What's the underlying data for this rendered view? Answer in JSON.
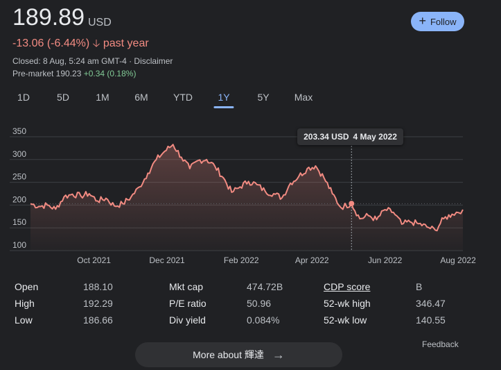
{
  "quote": {
    "price": "189.89",
    "currency": "USD",
    "change": "-13.06 (-6.44%)",
    "change_period": "past year",
    "closed_text": "Closed: 8 Aug, 5:24 am GMT-4 · Disclaimer",
    "premarket_label": "Pre-market 190.23",
    "premarket_change": "+0.34 (0.18%)"
  },
  "follow_button": {
    "label": "Follow",
    "icon": "plus-icon",
    "color": "#8ab4f8"
  },
  "ranges": [
    {
      "label": "1D",
      "active": false
    },
    {
      "label": "5D",
      "active": false
    },
    {
      "label": "1M",
      "active": false
    },
    {
      "label": "6M",
      "active": false
    },
    {
      "label": "YTD",
      "active": false
    },
    {
      "label": "1Y",
      "active": true
    },
    {
      "label": "5Y",
      "active": false
    },
    {
      "label": "Max",
      "active": false
    }
  ],
  "tooltip": {
    "value": "203.34 USD",
    "date": "4 May 2022"
  },
  "chart_data": {
    "type": "area",
    "ylim": [
      100,
      350
    ],
    "yticks": [
      "350",
      "300",
      "250",
      "200",
      "150",
      "100"
    ],
    "xticks": [
      {
        "label": "Oct 2021",
        "date": "2021-10-01"
      },
      {
        "label": "Dec 2021",
        "date": "2021-12-01"
      },
      {
        "label": "Feb 2022",
        "date": "2022-02-01"
      },
      {
        "label": "Apr 2022",
        "date": "2022-04-01"
      },
      {
        "label": "Jun 2022",
        "date": "2022-06-01"
      },
      {
        "label": "Aug 2022",
        "date": "2022-08-01"
      }
    ],
    "start_date": "2021-08-09",
    "end_date": "2022-08-05",
    "previous_close": 203,
    "line_color": "#f28b82",
    "hover": {
      "date": "2022-05-04",
      "value": 203.34
    },
    "series": [
      {
        "date": "2021-08-09",
        "value": 203
      },
      {
        "date": "2021-08-16",
        "value": 197
      },
      {
        "date": "2021-08-23",
        "value": 200
      },
      {
        "date": "2021-08-30",
        "value": 191
      },
      {
        "date": "2021-09-06",
        "value": 218
      },
      {
        "date": "2021-09-13",
        "value": 224
      },
      {
        "date": "2021-09-20",
        "value": 220
      },
      {
        "date": "2021-09-27",
        "value": 225
      },
      {
        "date": "2021-10-04",
        "value": 209
      },
      {
        "date": "2021-10-11",
        "value": 215
      },
      {
        "date": "2021-10-18",
        "value": 198
      },
      {
        "date": "2021-10-25",
        "value": 203
      },
      {
        "date": "2021-11-01",
        "value": 218
      },
      {
        "date": "2021-11-08",
        "value": 240
      },
      {
        "date": "2021-11-15",
        "value": 270
      },
      {
        "date": "2021-11-22",
        "value": 300
      },
      {
        "date": "2021-11-29",
        "value": 318
      },
      {
        "date": "2021-12-06",
        "value": 333
      },
      {
        "date": "2021-12-13",
        "value": 305
      },
      {
        "date": "2021-12-20",
        "value": 280
      },
      {
        "date": "2021-12-27",
        "value": 298
      },
      {
        "date": "2022-01-03",
        "value": 300
      },
      {
        "date": "2022-01-10",
        "value": 285
      },
      {
        "date": "2022-01-17",
        "value": 260
      },
      {
        "date": "2022-01-24",
        "value": 228
      },
      {
        "date": "2022-01-31",
        "value": 240
      },
      {
        "date": "2022-02-07",
        "value": 252
      },
      {
        "date": "2022-02-14",
        "value": 245
      },
      {
        "date": "2022-02-21",
        "value": 230
      },
      {
        "date": "2022-02-28",
        "value": 225
      },
      {
        "date": "2022-03-07",
        "value": 216
      },
      {
        "date": "2022-03-14",
        "value": 248
      },
      {
        "date": "2022-03-21",
        "value": 263
      },
      {
        "date": "2022-03-28",
        "value": 280
      },
      {
        "date": "2022-04-04",
        "value": 286
      },
      {
        "date": "2022-04-11",
        "value": 260
      },
      {
        "date": "2022-04-18",
        "value": 225
      },
      {
        "date": "2022-04-25",
        "value": 195
      },
      {
        "date": "2022-05-04",
        "value": 203.34
      },
      {
        "date": "2022-05-11",
        "value": 170
      },
      {
        "date": "2022-05-18",
        "value": 177
      },
      {
        "date": "2022-05-25",
        "value": 168
      },
      {
        "date": "2022-06-01",
        "value": 190
      },
      {
        "date": "2022-06-08",
        "value": 184
      },
      {
        "date": "2022-06-15",
        "value": 158
      },
      {
        "date": "2022-06-22",
        "value": 163
      },
      {
        "date": "2022-06-29",
        "value": 159
      },
      {
        "date": "2022-07-06",
        "value": 152
      },
      {
        "date": "2022-07-13",
        "value": 145
      },
      {
        "date": "2022-07-20",
        "value": 170
      },
      {
        "date": "2022-07-27",
        "value": 180
      },
      {
        "date": "2022-08-05",
        "value": 189.89
      }
    ]
  },
  "stats": {
    "col1": [
      {
        "label": "Open",
        "value": "188.10"
      },
      {
        "label": "High",
        "value": "192.29"
      },
      {
        "label": "Low",
        "value": "186.66"
      }
    ],
    "col2": [
      {
        "label": "Mkt cap",
        "value": "474.72B"
      },
      {
        "label": "P/E ratio",
        "value": "50.96"
      },
      {
        "label": "Div yield",
        "value": "0.084%"
      }
    ],
    "col3": [
      {
        "label": "CDP score",
        "value": "B"
      },
      {
        "label": "52-wk high",
        "value": "346.47"
      },
      {
        "label": "52-wk low",
        "value": "140.55"
      }
    ]
  },
  "feedback_label": "Feedback",
  "more_button": {
    "label": "More about 輝達",
    "icon": "arrow-right-icon"
  }
}
